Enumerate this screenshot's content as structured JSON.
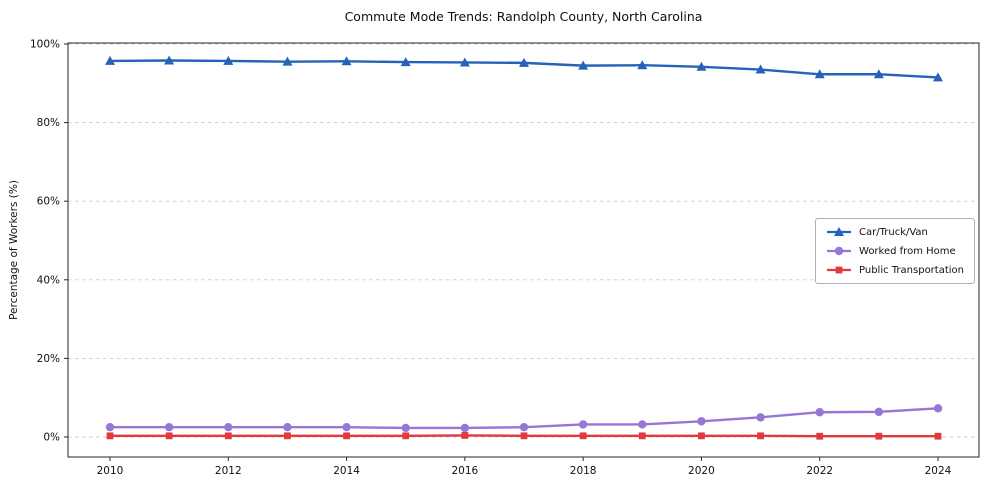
{
  "chart_data": {
    "type": "line",
    "title": "Commute Mode Trends: Randolph County, North Carolina",
    "xlabel": "",
    "ylabel": "Percentage of Workers (%)",
    "ylim": [
      0,
      100
    ],
    "grid": "horizontal-dashed",
    "legend_position": "center-right",
    "x": [
      2010,
      2011,
      2012,
      2013,
      2014,
      2015,
      2016,
      2017,
      2018,
      2019,
      2020,
      2021,
      2022,
      2023,
      2024
    ],
    "x_ticks": [
      2010,
      2012,
      2014,
      2016,
      2018,
      2020,
      2022,
      2024
    ],
    "y_tick_values": [
      0,
      20,
      40,
      60,
      80,
      100
    ],
    "y_tick_labels": [
      "0%",
      "20%",
      "40%",
      "60%",
      "80%",
      "100%"
    ],
    "series": [
      {
        "name": "Car/Truck/Van",
        "color": "#2563b8",
        "marker": "triangle",
        "values": [
          95.7,
          95.8,
          95.7,
          95.5,
          95.6,
          95.4,
          95.3,
          95.2,
          94.5,
          94.6,
          94.2,
          93.5,
          92.3,
          92.3,
          91.5
        ]
      },
      {
        "name": "Worked from Home",
        "color": "#9876d6",
        "marker": "circle",
        "values": [
          2.5,
          2.5,
          2.5,
          2.5,
          2.5,
          2.3,
          2.3,
          2.5,
          3.2,
          3.2,
          4.0,
          5.0,
          6.3,
          6.4,
          7.3
        ]
      },
      {
        "name": "Public Transportation",
        "color": "#e03a3c",
        "marker": "square",
        "values": [
          0.3,
          0.3,
          0.3,
          0.3,
          0.3,
          0.3,
          0.4,
          0.3,
          0.3,
          0.3,
          0.3,
          0.3,
          0.2,
          0.2,
          0.2
        ]
      }
    ]
  }
}
